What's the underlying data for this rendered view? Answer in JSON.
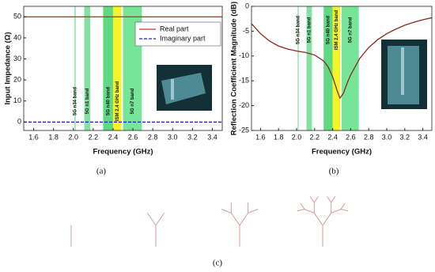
{
  "chart_data": [
    {
      "type": "line",
      "caption": "(a)",
      "x_label": "Frequency (GHz)",
      "y_label": "Input Impedance (Ω)",
      "xlim": [
        1.5,
        3.5
      ],
      "ylim": [
        -4,
        55
      ],
      "xticks": [
        1.6,
        1.8,
        {
          "value": 2,
          "label": "2.0"
        },
        2.2,
        2.4,
        2.6,
        2.8,
        {
          "value": 3,
          "label": "3.0"
        },
        3.2,
        3.4
      ],
      "yticks": [
        0,
        10,
        20,
        30,
        40,
        50
      ],
      "legend": "upper right",
      "bands": [
        {
          "label": "5G n34 band",
          "range": [
            2.01,
            2.025
          ],
          "color": "#8ee8a8"
        },
        {
          "label": "5G n1 band",
          "range": [
            2.11,
            2.17
          ],
          "color": "#6fdc92"
        },
        {
          "label": "5G n40 band",
          "range": [
            2.3,
            2.4
          ],
          "color": "#44d270"
        },
        {
          "label": "ISM 2.4 GHz band",
          "range": [
            2.4,
            2.4835
          ],
          "color": "#f2f200"
        },
        {
          "label": "5G n7 band",
          "range": [
            2.5,
            2.69
          ],
          "color": "#5fe086"
        }
      ],
      "x": [
        1.5,
        3.5
      ],
      "series": [
        {
          "name": "Real part",
          "color": "#c0392b",
          "dash": false,
          "values": [
            50,
            50
          ]
        },
        {
          "name": "Imaginary part",
          "color": "#1a1aa8",
          "dash": true,
          "values": [
            0,
            0
          ]
        }
      ]
    },
    {
      "type": "line",
      "caption": "(b)",
      "x_label": "Frequency (GHz)",
      "y_label": "Reflection Coefficient Magnitude (dB)",
      "xlim": [
        1.5,
        3.5
      ],
      "ylim": [
        -25,
        0
      ],
      "xticks": [
        1.6,
        1.8,
        {
          "value": 2,
          "label": "2.0"
        },
        2.2,
        2.4,
        2.6,
        2.8,
        {
          "value": 3,
          "label": "3.0"
        },
        3.2,
        3.4
      ],
      "yticks": [
        -25,
        -20,
        -15,
        -10,
        -5,
        0
      ],
      "bands": [
        {
          "label": "5G n34 band",
          "range": [
            2.01,
            2.025
          ],
          "color": "#8ee8a8"
        },
        {
          "label": "5G n1 band",
          "range": [
            2.11,
            2.17
          ],
          "color": "#6fdc92"
        },
        {
          "label": "5G n40 band",
          "range": [
            2.3,
            2.4
          ],
          "color": "#44d270"
        },
        {
          "label": "ISM 2.4 GHz band",
          "range": [
            2.4,
            2.4835
          ],
          "color": "#f2f200"
        },
        {
          "label": "5G n7 band",
          "range": [
            2.5,
            2.69
          ],
          "color": "#5fe086"
        }
      ],
      "x": [
        1.5,
        1.6,
        1.7,
        1.8,
        1.9,
        2.0,
        2.1,
        2.2,
        2.3,
        2.35,
        2.4,
        2.45,
        2.48,
        2.52,
        2.56,
        2.6,
        2.7,
        2.8,
        2.9,
        3.0,
        3.1,
        3.2,
        3.3,
        3.4,
        3.5
      ],
      "series": [
        {
          "color": "#8b2a1a",
          "dash": false,
          "values": [
            -3.5,
            -5.5,
            -7,
            -8,
            -8.6,
            -9,
            -9.3,
            -9.8,
            -11,
            -12.2,
            -14.2,
            -17,
            -18.5,
            -17.5,
            -15.5,
            -13.8,
            -10.5,
            -8.3,
            -6.7,
            -5.5,
            -4.6,
            -3.8,
            -3.2,
            -2.7,
            -2.3
          ]
        }
      ]
    }
  ],
  "figure_c": {
    "caption": "(c)"
  }
}
